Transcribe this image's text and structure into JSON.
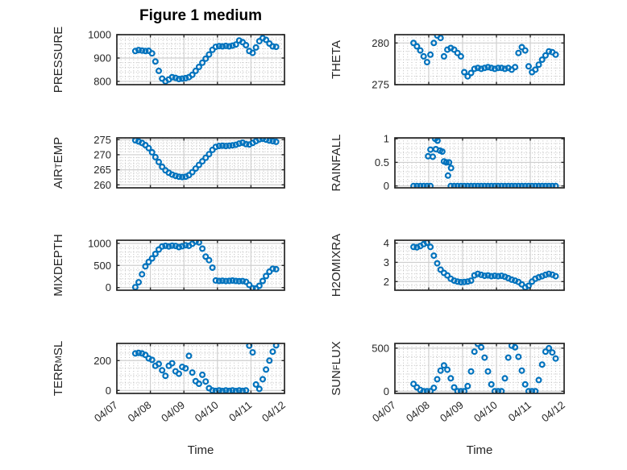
{
  "figure": {
    "title": "Figure 1 medium",
    "time_axis_label": "Time",
    "background": "#ffffff"
  },
  "style": {
    "marker_color": "#0072BD",
    "axis_color": "#262626",
    "grid_major_color": "#cfcfcf",
    "grid_minor_color": "#bfbfbf",
    "tick_label_color": "#262626",
    "title_color": "#000000"
  },
  "chart_data": {
    "type": "scatter",
    "marker": "hollow-circle",
    "grid": "major-solid-minor-dotted",
    "x_axis": {
      "lim": [
        0,
        5
      ],
      "ticks": [
        0,
        1,
        2,
        3,
        4,
        5
      ],
      "tick_labels": [
        "04/07",
        "04/08",
        "04/09",
        "04/10",
        "04/11",
        "04/12"
      ],
      "minor_step": 0.125,
      "label": "Time"
    },
    "x_base": [
      0.55,
      0.65,
      0.75,
      0.85,
      0.95,
      1.05,
      1.15,
      1.25,
      1.35,
      1.45,
      1.55,
      1.65,
      1.75,
      1.85,
      1.95,
      2.05,
      2.15,
      2.25,
      2.35,
      2.45,
      2.55,
      2.65,
      2.75,
      2.85,
      2.95,
      3.05,
      3.15,
      3.25,
      3.35,
      3.45,
      3.55,
      3.65,
      3.75,
      3.85,
      3.95,
      4.05,
      4.15,
      4.25,
      4.35,
      4.45,
      4.55,
      4.65,
      4.75
    ],
    "subplots": [
      {
        "key": "pressure",
        "row": 0,
        "col": 0,
        "label_text": "PRESSURE",
        "ylabel_parts": [
          {
            "t": "PRESSURE"
          }
        ],
        "ylim": [
          786,
          1000
        ],
        "yticks": [
          800,
          900,
          1000
        ],
        "ytick_labels": [
          "800",
          "900",
          "1000"
        ],
        "y_minor_step": 20,
        "y": [
          930,
          934,
          932,
          930,
          931,
          920,
          885,
          845,
          812,
          800,
          808,
          818,
          815,
          810,
          812,
          814,
          818,
          828,
          845,
          862,
          880,
          897,
          915,
          935,
          948,
          951,
          950,
          952,
          950,
          953,
          958,
          975,
          968,
          955,
          930,
          922,
          945,
          972,
          985,
          978,
          962,
          950,
          948
        ]
      },
      {
        "key": "theta",
        "row": 0,
        "col": 1,
        "label_text": "THETA",
        "ylabel_parts": [
          {
            "t": "THETA"
          }
        ],
        "ylim": [
          275,
          281
        ],
        "yticks": [
          275,
          280
        ],
        "ytick_labels": [
          "275",
          "280"
        ],
        "y_minor_step": 1,
        "y": [
          280.0,
          279.6,
          279.1,
          278.4,
          277.7,
          278.6,
          280.0,
          280.9,
          280.6,
          278.4,
          279.2,
          279.4,
          279.2,
          278.8,
          278.4,
          276.5,
          276.0,
          276.4,
          276.9,
          277.0,
          276.9,
          277.0,
          277.1,
          277.0,
          276.9,
          277.0,
          277.0,
          276.9,
          277.0,
          276.8,
          277.1,
          278.8,
          279.5,
          279.1,
          277.2,
          276.5,
          276.8,
          277.4,
          278.0,
          278.5,
          279.0,
          278.9,
          278.6
        ]
      },
      {
        "key": "air-temp",
        "row": 1,
        "col": 0,
        "label_text": "AIR_TEMP",
        "ylabel_parts": [
          {
            "t": "AIR"
          },
          {
            "t": "T",
            "sub": true
          },
          {
            "t": "EMP"
          }
        ],
        "ylim": [
          259,
          275.6
        ],
        "yticks": [
          260,
          265,
          270,
          275
        ],
        "ytick_labels": [
          "260",
          "265",
          "270",
          "275"
        ],
        "y_minor_step": 1,
        "y": [
          274.8,
          274.4,
          273.9,
          273.2,
          272.2,
          270.8,
          269.2,
          267.6,
          266.0,
          264.8,
          264.0,
          263.4,
          263.0,
          262.7,
          262.6,
          262.7,
          263.2,
          264.2,
          265.4,
          266.6,
          267.8,
          269.0,
          270.2,
          271.6,
          272.6,
          272.9,
          273.0,
          272.9,
          273.0,
          273.1,
          273.3,
          273.7,
          274.0,
          273.5,
          273.4,
          273.9,
          274.5,
          275.1,
          275.3,
          275.0,
          274.7,
          274.5,
          274.3
        ]
      },
      {
        "key": "rainfall",
        "row": 1,
        "col": 1,
        "label_text": "RAINFALL",
        "ylabel_parts": [
          {
            "t": "RAINFALL"
          }
        ],
        "ylim": [
          -0.04,
          1.02
        ],
        "yticks": [
          0,
          0.5,
          1
        ],
        "ytick_labels": [
          "0",
          "0.5",
          "1"
        ],
        "y_minor_step": 0.1,
        "x": [
          0.55,
          0.65,
          0.75,
          0.85,
          0.95,
          1.05,
          0.98,
          1.05,
          1.12,
          1.19,
          1.21,
          1.26,
          1.33,
          1.4,
          1.45,
          1.52,
          1.57,
          1.6,
          1.66,
          1.65,
          1.75,
          1.85,
          1.95,
          2.05,
          2.15,
          2.25,
          2.35,
          2.45,
          2.55,
          2.65,
          2.75,
          2.85,
          2.95,
          3.05,
          3.15,
          3.25,
          3.35,
          3.45,
          3.55,
          3.65,
          3.75,
          3.85,
          3.95,
          4.05,
          4.15,
          4.25,
          4.35,
          4.45,
          4.55,
          4.65,
          4.75
        ],
        "y": [
          0,
          0,
          0,
          0,
          0,
          0,
          0.63,
          0.77,
          0.62,
          1.0,
          0.78,
          0.96,
          0.75,
          0.73,
          0.52,
          0.5,
          0.22,
          0.5,
          0.38,
          0,
          0,
          0,
          0,
          0,
          0,
          0,
          0,
          0,
          0,
          0,
          0,
          0,
          0,
          0,
          0,
          0,
          0,
          0,
          0,
          0,
          0,
          0,
          0,
          0,
          0,
          0,
          0,
          0,
          0,
          0,
          0
        ]
      },
      {
        "key": "mixdepth",
        "row": 2,
        "col": 0,
        "label_text": "MIXDEPTH",
        "ylabel_parts": [
          {
            "t": "MIXDEPTH"
          }
        ],
        "ylim": [
          -60,
          1070
        ],
        "yticks": [
          0,
          500,
          1000
        ],
        "ytick_labels": [
          "0",
          "500",
          "1000"
        ],
        "y_minor_step": 100,
        "y": [
          10,
          120,
          300,
          480,
          580,
          660,
          760,
          860,
          930,
          945,
          930,
          948,
          940,
          915,
          935,
          955,
          945,
          990,
          1040,
          1020,
          880,
          700,
          620,
          450,
          160,
          150,
          155,
          148,
          152,
          158,
          150,
          145,
          148,
          130,
          60,
          -15,
          -20,
          40,
          150,
          260,
          360,
          425,
          415
        ]
      },
      {
        "key": "h2omixra",
        "row": 2,
        "col": 1,
        "label_text": "H2OMIXRA",
        "ylabel_parts": [
          {
            "t": "H2OMIXRA"
          }
        ],
        "ylim": [
          1.55,
          4.15
        ],
        "yticks": [
          2,
          3,
          4
        ],
        "ytick_labels": [
          "2",
          "3",
          "4"
        ],
        "y_minor_step": 0.2,
        "y": [
          3.8,
          3.78,
          3.85,
          3.95,
          4.02,
          3.8,
          3.35,
          2.95,
          2.62,
          2.45,
          2.32,
          2.15,
          2.05,
          2.0,
          1.97,
          1.98,
          2.0,
          2.05,
          2.32,
          2.4,
          2.35,
          2.3,
          2.32,
          2.28,
          2.3,
          2.28,
          2.3,
          2.25,
          2.18,
          2.1,
          2.05,
          1.98,
          1.85,
          1.7,
          1.78,
          2.0,
          2.15,
          2.22,
          2.28,
          2.35,
          2.4,
          2.36,
          2.28
        ]
      },
      {
        "key": "terr-msl",
        "row": 3,
        "col": 0,
        "label_text": "TERR_MSL",
        "ylabel_parts": [
          {
            "t": "TERR"
          },
          {
            "t": "M",
            "sub": true
          },
          {
            "t": "SL"
          }
        ],
        "ylim": [
          -20,
          315
        ],
        "yticks": [
          0,
          200
        ],
        "ytick_labels": [
          "0",
          "200"
        ],
        "y_minor_step": 50,
        "y": [
          248,
          252,
          248,
          238,
          215,
          205,
          165,
          178,
          135,
          98,
          165,
          182,
          128,
          112,
          158,
          148,
          232,
          120,
          62,
          45,
          105,
          60,
          15,
          0,
          -3,
          0,
          -4,
          0,
          -3,
          0,
          -4,
          0,
          -3,
          0,
          300,
          255,
          40,
          10,
          75,
          140,
          200,
          260,
          302
        ]
      },
      {
        "key": "sun-flux",
        "row": 3,
        "col": 1,
        "label_text": "SUN_FLUX",
        "ylabel_parts": [
          {
            "t": "SUN"
          },
          {
            "t": "F",
            "sub": true
          },
          {
            "t": "LUX"
          }
        ],
        "ylim": [
          -25,
          555
        ],
        "yticks": [
          0,
          500
        ],
        "ytick_labels": [
          "0",
          "500"
        ],
        "y_minor_step": 100,
        "y": [
          85,
          45,
          15,
          0,
          0,
          0,
          40,
          140,
          240,
          300,
          250,
          150,
          45,
          0,
          0,
          0,
          60,
          230,
          460,
          550,
          510,
          390,
          230,
          80,
          0,
          0,
          0,
          150,
          390,
          530,
          510,
          400,
          240,
          80,
          0,
          0,
          0,
          130,
          310,
          460,
          500,
          450,
          380
        ]
      }
    ]
  }
}
